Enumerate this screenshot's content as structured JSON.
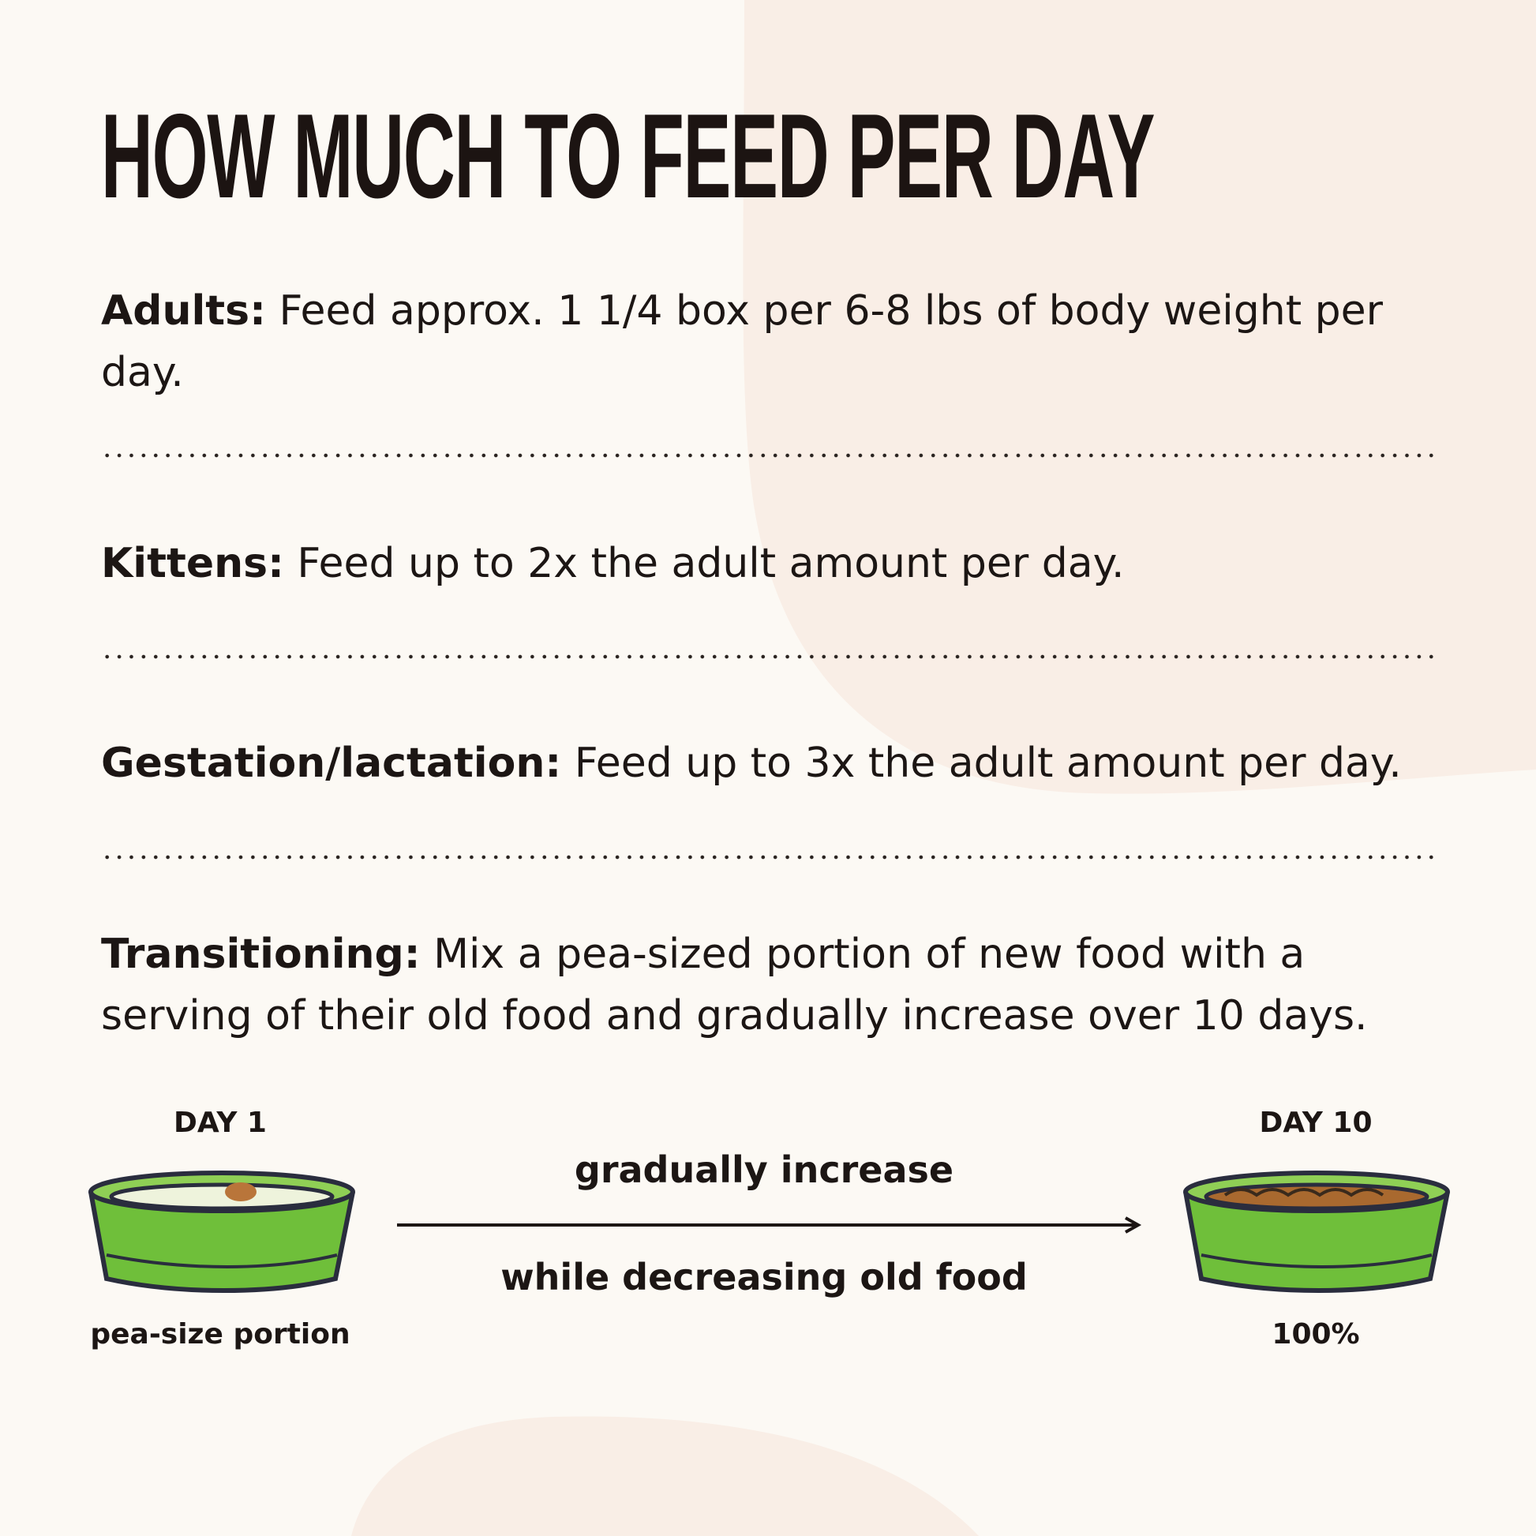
{
  "title": "HOW MUCH TO FEED PER DAY",
  "sections": [
    {
      "label": "Adults:",
      "text": " Feed approx. 1 1/4 box per 6-8 lbs of body weight per day."
    },
    {
      "label": "Kittens:",
      "text": " Feed up to 2x the adult amount per day."
    },
    {
      "label": "Gestation/lactation:",
      "text": " Feed up to 3x the adult amount per day."
    },
    {
      "label": "Transitioning:",
      "text": " Mix a pea-sized portion of new food with a serving of their old food and gradually increase over 10 days."
    }
  ],
  "transition": {
    "start_day": "DAY 1",
    "start_caption": "pea-size portion",
    "end_day": "DAY 10",
    "end_caption": "100%",
    "arrow_top": "gradually increase",
    "arrow_bottom": "while decreasing old food"
  },
  "colors": {
    "background": "#fcf9f4",
    "blob": "#f9eee6",
    "bowl_green": "#6fbf3a",
    "outline": "#2a2d3e"
  },
  "icons": {
    "start_bowl": "bowl-with-pea-icon",
    "end_bowl": "bowl-full-icon",
    "arrow": "arrow-right-icon"
  }
}
